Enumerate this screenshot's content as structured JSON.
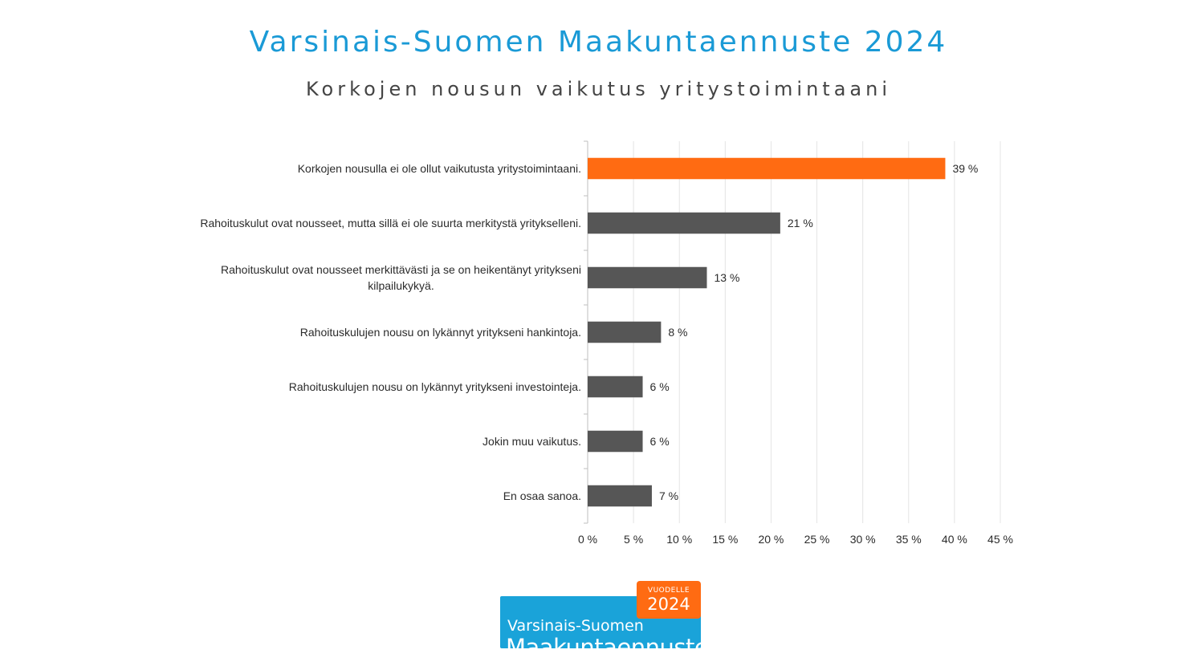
{
  "title": "Varsinais-Suomen Maakuntaennuste 2024",
  "subtitle": "Korkojen nousun vaikutus yritystoimintaani",
  "colors": {
    "title": "#1a9ad6",
    "subtitle": "#444444",
    "highlight": "#ff6b12",
    "bar": "#565656",
    "grid": "#e4e4e4",
    "axis": "#bfbfbf",
    "logo_blue": "#1aa3d9",
    "logo_orange": "#ff6b12"
  },
  "chart_data": {
    "type": "bar",
    "orientation": "horizontal",
    "title": "Korkojen nousun vaikutus yritystoimintaani",
    "categories": [
      [
        "Korkojen nousulla ei ole ollut vaikutusta yritystoimintaani."
      ],
      [
        "Rahoituskulut ovat nousseet, mutta sillä ei ole suurta merkitystä yritykselleni."
      ],
      [
        "Rahoituskulut ovat nousseet merkittävästi ja se on heikentänyt yritykseni",
        "kilpailukykyä."
      ],
      [
        "Rahoituskulujen nousu on lykännyt yritykseni hankintoja."
      ],
      [
        "Rahoituskulujen nousu on lykännyt yritykseni investointeja."
      ],
      [
        "Jokin muu vaikutus."
      ],
      [
        "En osaa sanoa."
      ]
    ],
    "values": [
      39,
      21,
      13,
      8,
      6,
      6,
      7
    ],
    "value_labels": [
      "39 %",
      "21 %",
      "13 %",
      "8 %",
      "6 %",
      "6 %",
      "7 %"
    ],
    "highlight_index": 0,
    "xlim": [
      0,
      45
    ],
    "x_ticks": [
      0,
      5,
      10,
      15,
      20,
      25,
      30,
      35,
      40,
      45
    ],
    "x_tick_labels": [
      "0 %",
      "5 %",
      "10 %",
      "15 %",
      "20 %",
      "25 %",
      "30 %",
      "35 %",
      "40 %",
      "45 %"
    ],
    "grid": true,
    "legend": "none"
  },
  "logo": {
    "line1": "Varsinais-Suomen",
    "line2": "Maakuntaennuste",
    "badge_small": "VUODELLE",
    "badge_year": "2024"
  }
}
